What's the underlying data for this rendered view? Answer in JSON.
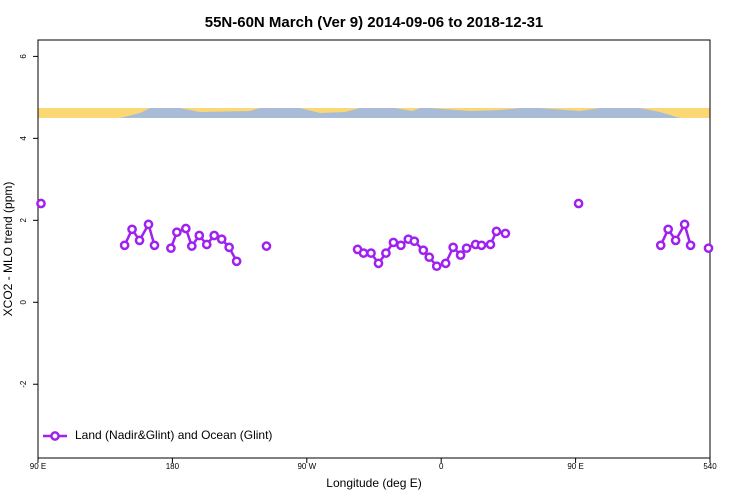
{
  "chart_data": {
    "type": "line",
    "title": "55N-60N March (Ver 9)   2014-09-06 to 2018-12-31",
    "x_label": "Longitude (deg E)",
    "y_label": "XCO2 - MLO trend (ppm)",
    "xlim": [
      90,
      540
    ],
    "ylim": [
      -3.8,
      6.4
    ],
    "xticks": [
      {
        "value": 90,
        "label": "90 E"
      },
      180,
      {
        "value": 270,
        "label": "90 W"
      },
      {
        "value": 360,
        "label": "0"
      },
      {
        "value": 450,
        "label": "90 E"
      },
      540
    ],
    "yticks": [
      -2,
      0,
      2,
      4,
      6
    ],
    "legend": "bottom-left",
    "series": [
      {
        "name": "Land (Nadir&Glint) and Ocean (Glint)",
        "color": "#a020f0",
        "x": [
          92,
          null,
          148,
          153,
          158,
          164,
          168,
          null,
          179,
          183,
          189,
          193,
          198,
          203,
          208,
          213,
          218,
          223,
          null,
          243,
          null,
          304,
          308,
          313,
          318,
          323,
          328,
          333,
          338,
          342,
          348,
          352,
          357,
          363,
          368,
          373,
          377,
          383,
          387,
          393,
          397,
          403,
          null,
          452,
          null,
          507,
          512,
          517,
          523,
          527,
          null,
          539
        ],
        "values": [
          2.41,
          null,
          1.39,
          1.78,
          1.51,
          1.9,
          1.39,
          null,
          1.32,
          1.71,
          1.8,
          1.37,
          1.63,
          1.41,
          1.63,
          1.54,
          1.34,
          1.0,
          null,
          1.37,
          null,
          1.29,
          1.2,
          1.2,
          0.95,
          1.2,
          1.46,
          1.39,
          1.54,
          1.49,
          1.27,
          1.1,
          0.88,
          0.95,
          1.34,
          1.15,
          1.32,
          1.41,
          1.39,
          1.41,
          1.73,
          1.68,
          null,
          2.41,
          null,
          1.39,
          1.78,
          1.51,
          1.9,
          1.39,
          null,
          1.32
        ]
      }
    ]
  }
}
